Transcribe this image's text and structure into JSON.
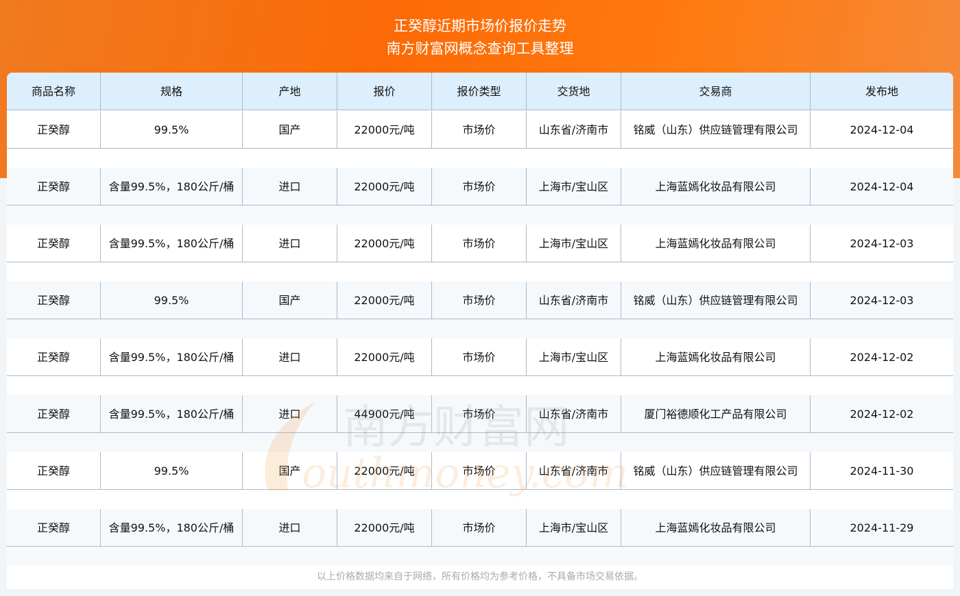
{
  "header": {
    "title": "正癸醇近期市场价报价走势",
    "subtitle": "南方财富网概念查询工具整理"
  },
  "table": {
    "columns": [
      "商品名称",
      "规格",
      "产地",
      "报价",
      "报价类型",
      "交货地",
      "交易商",
      "发布地"
    ],
    "rows": [
      [
        "正癸醇",
        "99.5%",
        "国产",
        "22000元/吨",
        "市场价",
        "山东省/济南市",
        "铭威（山东）供应链管理有限公司",
        "2024-12-04"
      ],
      [
        "正癸醇",
        "含量99.5%，180公斤/桶",
        "进口",
        "22000元/吨",
        "市场价",
        "上海市/宝山区",
        "上海蓝嫣化妆品有限公司",
        "2024-12-04"
      ],
      [
        "正癸醇",
        "含量99.5%，180公斤/桶",
        "进口",
        "22000元/吨",
        "市场价",
        "上海市/宝山区",
        "上海蓝嫣化妆品有限公司",
        "2024-12-03"
      ],
      [
        "正癸醇",
        "99.5%",
        "国产",
        "22000元/吨",
        "市场价",
        "山东省/济南市",
        "铭威（山东）供应链管理有限公司",
        "2024-12-03"
      ],
      [
        "正癸醇",
        "含量99.5%，180公斤/桶",
        "进口",
        "22000元/吨",
        "市场价",
        "上海市/宝山区",
        "上海蓝嫣化妆品有限公司",
        "2024-12-02"
      ],
      [
        "正癸醇",
        "含量99.5%，180公斤/桶",
        "进口",
        "44900元/吨",
        "市场价",
        "山东省/济南市",
        "厦门裕德顺化工产品有限公司",
        "2024-12-02"
      ],
      [
        "正癸醇",
        "99.5%",
        "国产",
        "22000元/吨",
        "市场价",
        "山东省/济南市",
        "铭威（山东）供应链管理有限公司",
        "2024-11-30"
      ],
      [
        "正癸醇",
        "含量99.5%，180公斤/桶",
        "进口",
        "22000元/吨",
        "市场价",
        "上海市/宝山区",
        "上海蓝嫣化妆品有限公司",
        "2024-11-29"
      ]
    ]
  },
  "footer": {
    "note": "以上价格数据均来自于网络，所有价格均为参考价格，不具备市场交易依据。"
  },
  "watermark": {
    "text_cn": "南方财富网",
    "text_en": "Southmoney.com"
  },
  "colors": {
    "banner": "#fb6a06",
    "header_bg": "#ddeefd",
    "border": "#a9b9cc"
  }
}
